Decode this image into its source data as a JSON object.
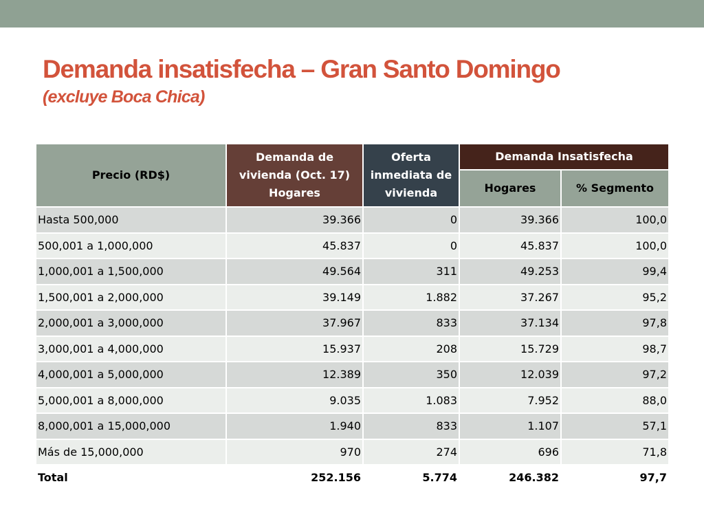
{
  "slide": {
    "title": "Demanda insatisfecha – Gran Santo Domingo",
    "subtitle": "(excluye Boca Chica)"
  },
  "table": {
    "headers": {
      "precio": "Precio (RD$)",
      "demanda": "Demanda de vivienda (Oct. 17) Hogares",
      "oferta": "Oferta inmediata de vivienda",
      "insatisfecha": "Demanda Insatisfecha",
      "hogares": "Hogares",
      "segmento": "% Segmento"
    },
    "rows": [
      {
        "precio": "Hasta 500,000",
        "demanda": "39.366",
        "oferta": "0",
        "hogares": "39.366",
        "segmento": "100,0"
      },
      {
        "precio": "500,001 a 1,000,000",
        "demanda": "45.837",
        "oferta": "0",
        "hogares": "45.837",
        "segmento": "100,0"
      },
      {
        "precio": "1,000,001 a 1,500,000",
        "demanda": "49.564",
        "oferta": "311",
        "hogares": "49.253",
        "segmento": "99,4"
      },
      {
        "precio": "1,500,001 a 2,000,000",
        "demanda": "39.149",
        "oferta": "1.882",
        "hogares": "37.267",
        "segmento": "95,2"
      },
      {
        "precio": "2,000,001 a 3,000,000",
        "demanda": "37.967",
        "oferta": "833",
        "hogares": "37.134",
        "segmento": "97,8"
      },
      {
        "precio": "3,000,001 a 4,000,000",
        "demanda": "15.937",
        "oferta": "208",
        "hogares": "15.729",
        "segmento": "98,7"
      },
      {
        "precio": "4,000,001 a 5,000,000",
        "demanda": "12.389",
        "oferta": "350",
        "hogares": "12.039",
        "segmento": "97,2"
      },
      {
        "precio": "5,000,001 a 8,000,000",
        "demanda": "9.035",
        "oferta": "1.083",
        "hogares": "7.952",
        "segmento": "88,0"
      },
      {
        "precio": "8,000,001 a 15,000,000",
        "demanda": "1.940",
        "oferta": "833",
        "hogares": "1.107",
        "segmento": "57,1"
      },
      {
        "precio": "Más de 15,000,000",
        "demanda": "970",
        "oferta": "274",
        "hogares": "696",
        "segmento": "71,8"
      }
    ],
    "total": {
      "precio": "Total",
      "demanda": "252.156",
      "oferta": "5.774",
      "hogares": "246.382",
      "segmento": "97,7"
    }
  },
  "colors": {
    "accent_title": "#d2533b",
    "top_bar": "#8fa193",
    "header_gray": "#95a397",
    "header_brown": "#653f37",
    "header_slate": "#35414b",
    "header_dark_brown": "#45231b",
    "row_dark": "#d6d9d7",
    "row_light": "#ebeeeb"
  }
}
